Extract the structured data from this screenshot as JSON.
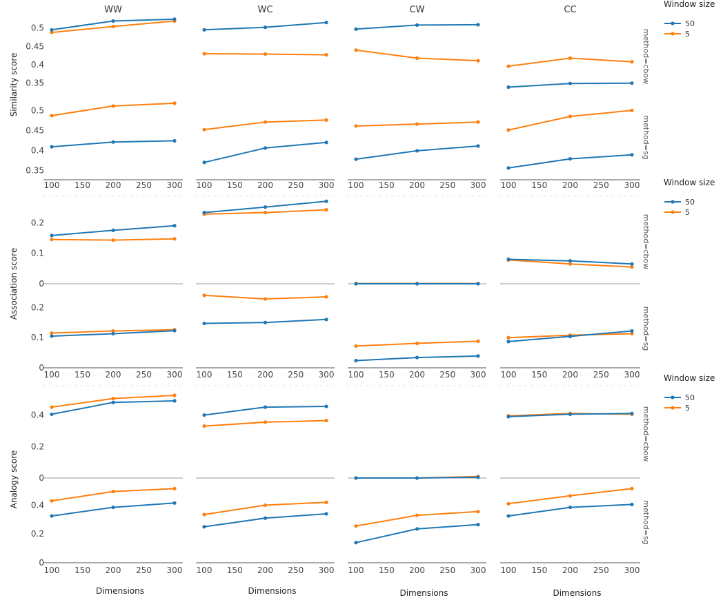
{
  "chart_data": {
    "type": "line",
    "columns": [
      "WW",
      "WC",
      "CW",
      "CC"
    ],
    "x": [
      100,
      200,
      300
    ],
    "x_ticks": [
      "100",
      "150",
      "200",
      "250",
      "300"
    ],
    "x_label": "Dimensions",
    "methods": [
      "method=cbow",
      "method=sg"
    ],
    "series_colors": {
      "50": "#1f77b4",
      "5": "#ff7f0e"
    },
    "legend": {
      "title": "Window size",
      "items": [
        "50",
        "5"
      ],
      "placement": "right"
    },
    "blocks": [
      {
        "ylabel": "Similarity score",
        "panels": {
          "cbow": {
            "ticks": [
              "0.35",
              "0.4",
              "0.45",
              "0.5"
            ],
            "ylim": [
              0.31,
              0.535
            ],
            "data": {
              "WW": {
                "50": [
                  0.495,
                  0.519,
                  0.524
                ],
                "5": [
                  0.488,
                  0.504,
                  0.519
                ]
              },
              "WC": {
                "50": [
                  0.495,
                  0.502,
                  0.515
                ],
                "5": [
                  0.43,
                  0.429,
                  0.427
                ]
              },
              "CW": {
                "50": [
                  0.497,
                  0.508,
                  0.509
                ],
                "5": [
                  0.44,
                  0.418,
                  0.411
                ]
              },
              "CC": {
                "50": [
                  0.339,
                  0.349,
                  0.35
                ],
                "5": [
                  0.396,
                  0.418,
                  0.408
                ]
              }
            }
          },
          "sg": {
            "ticks": [
              "0.35",
              "0.4",
              "0.45",
              "0.5"
            ],
            "ylim": [
              0.33,
              0.535
            ],
            "data": {
              "WW": {
                "50": [
                  0.409,
                  0.421,
                  0.424
                ],
                "5": [
                  0.487,
                  0.511,
                  0.518
                ]
              },
              "WC": {
                "50": [
                  0.37,
                  0.406,
                  0.42
                ],
                "5": [
                  0.452,
                  0.471,
                  0.476
                ]
              },
              "CW": {
                "50": [
                  0.378,
                  0.399,
                  0.411
                ],
                "5": [
                  0.461,
                  0.466,
                  0.471
                ]
              },
              "CC": {
                "50": [
                  0.356,
                  0.379,
                  0.389
                ],
                "5": [
                  0.451,
                  0.485,
                  0.5
                ]
              }
            }
          }
        }
      },
      {
        "ylabel": "Association score",
        "panels": {
          "cbow": {
            "ticks": [
              "0",
              "0.1",
              "0.2"
            ],
            "ylim": [
              0,
              0.275
            ],
            "data": {
              "WW": {
                "50": [
                  0.158,
                  0.175,
                  0.19
                ],
                "5": [
                  0.145,
                  0.143,
                  0.147
                ]
              },
              "WC": {
                "50": [
                  0.233,
                  0.251,
                  0.27
                ],
                "5": [
                  0.228,
                  0.233,
                  0.242
                ]
              },
              "CW": {
                "50": [
                  0.0,
                  0.0,
                  0.0
                ],
                "5": [
                  0.001,
                  0.001,
                  0.001
                ]
              },
              "CC": {
                "50": [
                  0.08,
                  0.075,
                  0.065
                ],
                "5": [
                  0.078,
                  0.065,
                  0.055
                ]
              }
            }
          },
          "sg": {
            "ticks": [
              "0",
              "0.1",
              "0.2"
            ],
            "ylim": [
              0,
              0.26
            ],
            "data": {
              "WW": {
                "50": [
                  0.105,
                  0.113,
                  0.123
                ],
                "5": [
                  0.115,
                  0.122,
                  0.126
                ]
              },
              "WC": {
                "50": [
                  0.147,
                  0.15,
                  0.16
                ],
                "5": [
                  0.24,
                  0.228,
                  0.235
                ]
              },
              "CW": {
                "50": [
                  0.024,
                  0.034,
                  0.039
                ],
                "5": [
                  0.072,
                  0.081,
                  0.088
                ]
              },
              "CC": {
                "50": [
                  0.087,
                  0.104,
                  0.122
                ],
                "5": [
                  0.1,
                  0.108,
                  0.113
                ]
              }
            }
          }
        }
      },
      {
        "ylabel": "Analogy score",
        "panels": {
          "cbow": {
            "ticks": [
              "0",
              "0.2",
              "0.4"
            ],
            "ylim": [
              0,
              0.56
            ],
            "data": {
              "WW": {
                "50": [
                  0.405,
                  0.48,
                  0.49
                ],
                "5": [
                  0.45,
                  0.505,
                  0.525
                ]
              },
              "WC": {
                "50": [
                  0.4,
                  0.45,
                  0.455
                ],
                "5": [
                  0.33,
                  0.355,
                  0.365
                ]
              },
              "CW": {
                "50": [
                  0.0,
                  0.0,
                  0.005
                ],
                "5": [
                  0.0,
                  0.0,
                  0.01
                ]
              },
              "CC": {
                "50": [
                  0.39,
                  0.405,
                  0.41
                ],
                "5": [
                  0.395,
                  0.41,
                  0.405
                ]
              }
            }
          },
          "sg": {
            "ticks": [
              "0",
              "0.2",
              "0.4"
            ],
            "ylim": [
              0,
              0.56
            ],
            "data": {
              "WW": {
                "50": [
                  0.325,
                  0.385,
                  0.415
                ],
                "5": [
                  0.43,
                  0.495,
                  0.515
                ]
              },
              "WC": {
                "50": [
                  0.25,
                  0.31,
                  0.34
                ],
                "5": [
                  0.335,
                  0.4,
                  0.42
                ]
              },
              "CW": {
                "50": [
                  0.14,
                  0.235,
                  0.265
                ],
                "5": [
                  0.255,
                  0.33,
                  0.355
                ]
              },
              "CC": {
                "50": [
                  0.325,
                  0.385,
                  0.405
                ],
                "5": [
                  0.41,
                  0.465,
                  0.515
                ]
              }
            }
          }
        }
      }
    ]
  }
}
